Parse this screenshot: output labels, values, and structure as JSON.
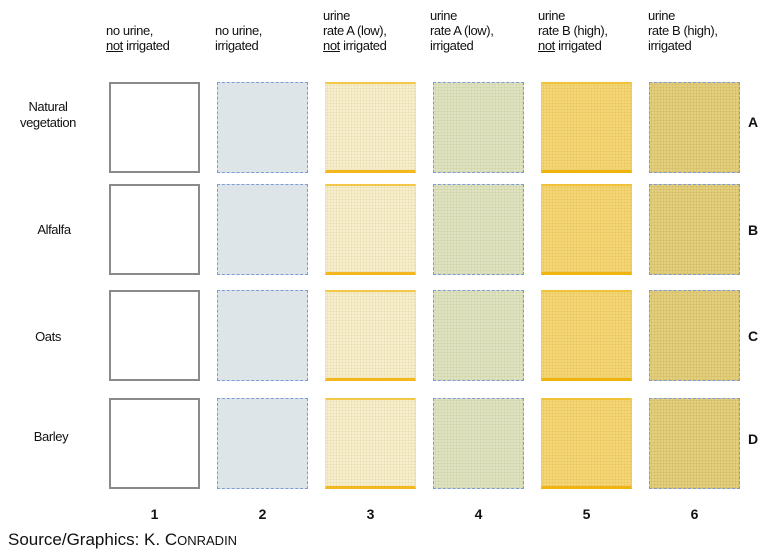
{
  "columns": [
    {
      "num": "1",
      "lines": [
        "",
        "no urine,",
        "not irrigated"
      ],
      "underline_word": "not"
    },
    {
      "num": "2",
      "lines": [
        "",
        "no urine,",
        "irrigated"
      ],
      "underline_word": ""
    },
    {
      "num": "3",
      "lines": [
        "urine",
        "rate A (low),",
        "not irrigated"
      ],
      "underline_word": "not"
    },
    {
      "num": "4",
      "lines": [
        "urine",
        "rate A (low),",
        "irrigated"
      ],
      "underline_word": ""
    },
    {
      "num": "5",
      "lines": [
        "urine",
        "rate B (high),",
        "not irrigated"
      ],
      "underline_word": "not"
    },
    {
      "num": "6",
      "lines": [
        "urine",
        "rate B (high),",
        "irrigated"
      ],
      "underline_word": ""
    }
  ],
  "rows": [
    {
      "label_lines": [
        "Natural",
        "vegetation"
      ],
      "code": "A"
    },
    {
      "label_lines": [
        "Alfalfa"
      ],
      "code": "B"
    },
    {
      "label_lines": [
        "Oats"
      ],
      "code": "C"
    },
    {
      "label_lines": [
        "Barley"
      ],
      "code": "D"
    }
  ],
  "treatment_colors": {
    "t1": "#ffffff",
    "t2": "#dde5e8",
    "t3": "#f7efcf",
    "t4": "#dfe3c4",
    "t5": "#f4d67a",
    "t6": "#e2cf80"
  },
  "source": {
    "prefix": "Source/Graphics: K. ",
    "name_first": "C",
    "name_rest": "ONRADIN"
  }
}
